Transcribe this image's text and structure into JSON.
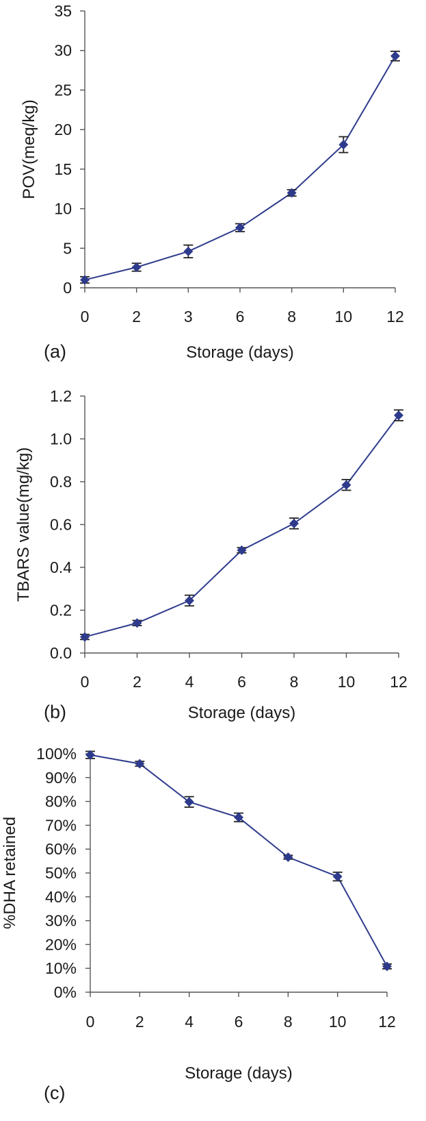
{
  "chart_data": [
    {
      "type": "line",
      "panel_label": "(a)",
      "xlabel": "Storage (days)",
      "ylabel": "POV(meq/kg)",
      "categories": [
        "0",
        "2",
        "3",
        "6",
        "8",
        "10",
        "12"
      ],
      "ylim": [
        0,
        35
      ],
      "yticks": [
        "0",
        "5",
        "10",
        "15",
        "20",
        "25",
        "30",
        "35"
      ],
      "grid": false,
      "legend": "none",
      "color": "#2e3b8c",
      "series": [
        {
          "values": [
            1.0,
            2.6,
            4.6,
            7.6,
            12.0,
            18.1,
            29.3
          ],
          "errors": [
            0.4,
            0.5,
            0.8,
            0.5,
            0.4,
            1.0,
            0.6
          ]
        }
      ]
    },
    {
      "type": "line",
      "panel_label": "(b)",
      "xlabel": "Storage (days)",
      "ylabel": "TBARS value(mg/kg)",
      "categories": [
        "0",
        "2",
        "4",
        "6",
        "8",
        "10",
        "12"
      ],
      "ylim": [
        0,
        1.2
      ],
      "yticks": [
        "0.0",
        "0.2",
        "0.4",
        "0.6",
        "0.8",
        "1.0",
        "1.2"
      ],
      "grid": false,
      "legend": "none",
      "color": "#2e3b8c",
      "series": [
        {
          "values": [
            0.075,
            0.14,
            0.245,
            0.48,
            0.605,
            0.785,
            1.11
          ],
          "errors": [
            0.012,
            0.012,
            0.025,
            0.012,
            0.025,
            0.025,
            0.025
          ]
        }
      ]
    },
    {
      "type": "line",
      "panel_label": "(c)",
      "xlabel": "Storage (days)",
      "ylabel": "%DHA retained",
      "categories": [
        "0",
        "2",
        "4",
        "6",
        "8",
        "10",
        "12"
      ],
      "ylim": [
        0,
        100
      ],
      "yticks": [
        "0%",
        "10%",
        "20%",
        "30%",
        "40%",
        "50%",
        "60%",
        "70%",
        "80%",
        "90%",
        "100%"
      ],
      "grid": false,
      "legend": "none",
      "color": "#2e3b8c",
      "series": [
        {
          "values": [
            99.5,
            95.8,
            79.8,
            73.3,
            56.6,
            48.5,
            10.8
          ],
          "errors": [
            1.5,
            1.0,
            2.2,
            1.8,
            0.8,
            1.8,
            1.0
          ]
        }
      ]
    }
  ]
}
